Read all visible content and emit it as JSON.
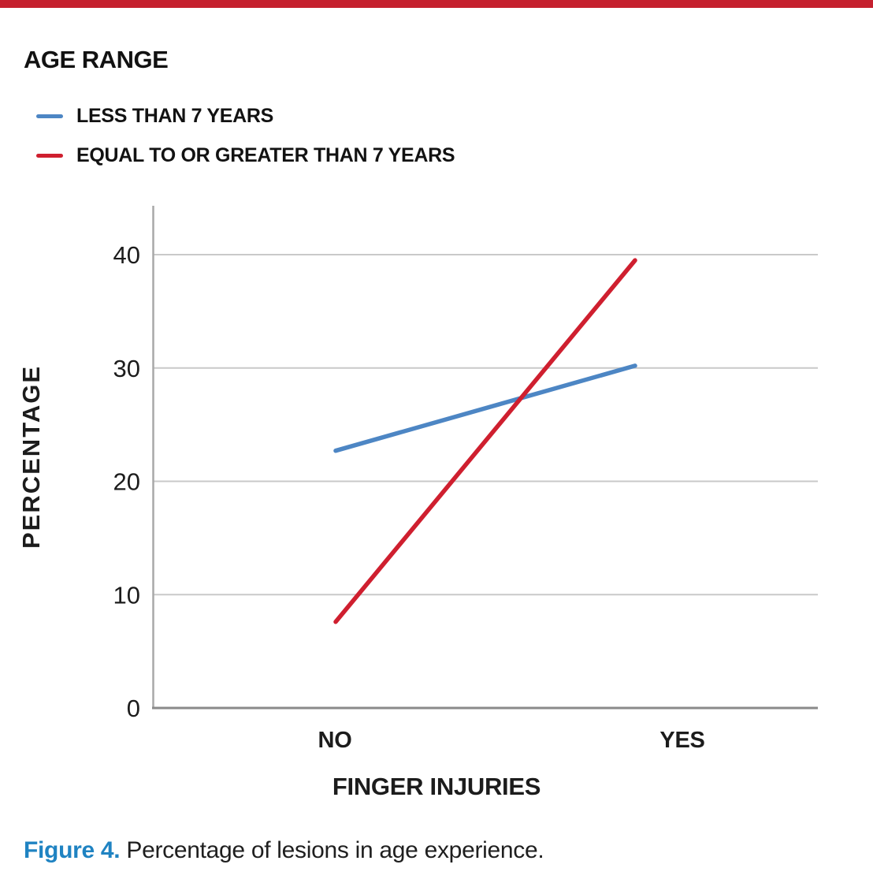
{
  "page": {
    "background": "#ffffff",
    "top_bar_color": "#c5202e"
  },
  "legend": {
    "title": "AGE RANGE",
    "items": [
      {
        "label": "LESS THAN 7 YEARS",
        "color": "#4d86c4"
      },
      {
        "label": "EQUAL TO OR GREATER THAN 7 YEARS",
        "color": "#cf1f2f"
      }
    ]
  },
  "chart_data": {
    "type": "line",
    "categories": [
      "NO",
      "YES"
    ],
    "series": [
      {
        "name": "LESS THAN 7 YEARS",
        "color": "#4d86c4",
        "values": [
          22.7,
          30.2
        ]
      },
      {
        "name": "EQUAL TO OR GREATER THAN 7 YEARS",
        "color": "#cf1f2f",
        "values": [
          7.6,
          39.5
        ]
      }
    ],
    "title": "",
    "xlabel": "FINGER INJURIES",
    "ylabel": "PERCENTAGE",
    "yticks": [
      0,
      10,
      20,
      30,
      40
    ],
    "ylim": [
      0,
      44.3
    ],
    "grid": "horizontal",
    "legend_position": "top-left",
    "gridline_color": "#c9c9c9",
    "axis_color": "#a8a8a8",
    "baseline_color": "#8a8a8a"
  },
  "caption": {
    "label": "Figure 4.",
    "label_color": "#1f83c2",
    "text": "Percentage of lesions in age experience."
  }
}
